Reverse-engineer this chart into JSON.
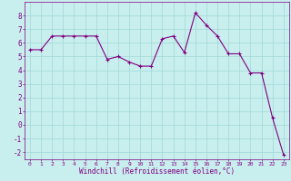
{
  "x": [
    0,
    1,
    2,
    3,
    4,
    5,
    6,
    7,
    8,
    9,
    10,
    11,
    12,
    13,
    14,
    15,
    16,
    17,
    18,
    19,
    20,
    21,
    22,
    23
  ],
  "y": [
    5.5,
    5.5,
    6.5,
    6.5,
    6.5,
    6.5,
    6.5,
    4.8,
    5.0,
    4.6,
    4.3,
    4.3,
    6.3,
    6.5,
    5.3,
    8.2,
    7.3,
    6.5,
    5.2,
    5.2,
    3.8,
    3.8,
    0.5,
    -2.2
  ],
  "line_color": "#800080",
  "marker": "+",
  "marker_size": 3,
  "bg_color": "#c8eeee",
  "grid_color": "#a0d8d8",
  "xlabel": "Windchill (Refroidissement éolien,°C)",
  "ylim": [
    -2.5,
    9.0
  ],
  "xlim": [
    -0.5,
    23.5
  ],
  "yticks": [
    -2,
    -1,
    0,
    1,
    2,
    3,
    4,
    5,
    6,
    7,
    8
  ],
  "xticks": [
    0,
    1,
    2,
    3,
    4,
    5,
    6,
    7,
    8,
    9,
    10,
    11,
    12,
    13,
    14,
    15,
    16,
    17,
    18,
    19,
    20,
    21,
    22,
    23
  ],
  "tick_color": "#800080",
  "label_color": "#800080",
  "xlabel_fontsize": 5.5,
  "tick_fontsize_x": 4.5,
  "tick_fontsize_y": 5.5
}
